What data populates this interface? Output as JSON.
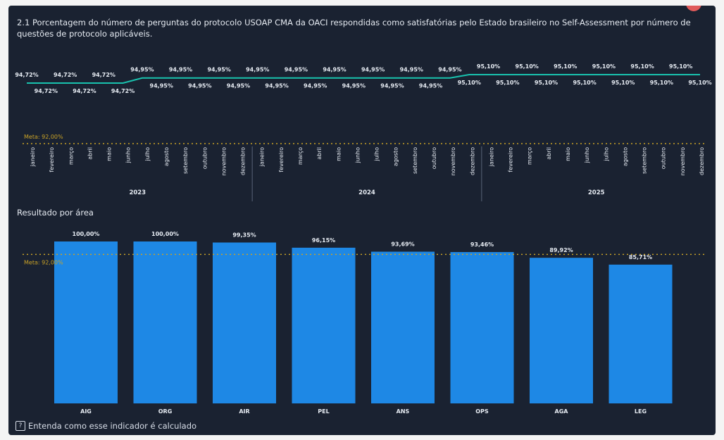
{
  "title": "2.1 Porcentagem do número de perguntas do protocolo USOAP CMA da OACI respondidas como satisfatórias pelo Estado brasileiro no Self-Assessment por número de questões de protocolo aplicáveis.",
  "section_label": "Resultado por área",
  "help_link": "Entenda como esse indicador é calculado",
  "help_icon": "question-box-icon",
  "colors": {
    "background": "#1a2231",
    "line": "#19c2ae",
    "bar": "#1e88e5",
    "meta": "#c9a227",
    "text": "#e6ebf2"
  },
  "chart_data": [
    {
      "type": "line",
      "meta_label": "Meta: 92,00%",
      "meta_value": 92.0,
      "x_months": [
        "janeiro",
        "fevereiro",
        "março",
        "abril",
        "maio",
        "junho",
        "julho",
        "agosto",
        "setembro",
        "outubro",
        "novembro",
        "dezembro"
      ],
      "years": [
        "2023",
        "2024",
        "2025"
      ],
      "values": [
        94.72,
        94.72,
        94.72,
        94.72,
        94.72,
        94.72,
        94.95,
        94.95,
        94.95,
        94.95,
        94.95,
        94.95,
        94.95,
        94.95,
        94.95,
        94.95,
        94.95,
        94.95,
        94.95,
        94.95,
        94.95,
        94.95,
        94.95,
        95.1,
        95.1,
        95.1,
        95.1,
        95.1,
        95.1,
        95.1,
        95.1,
        95.1,
        95.1,
        95.1,
        95.1,
        95.1
      ],
      "labels": [
        "94,72%",
        "94,72%",
        "94,72%",
        "94,72%",
        "94,72%",
        "94,72%",
        "94,95%",
        "94,95%",
        "94,95%",
        "94,95%",
        "94,95%",
        "94,95%",
        "94,95%",
        "94,95%",
        "94,95%",
        "94,95%",
        "94,95%",
        "94,95%",
        "94,95%",
        "94,95%",
        "94,95%",
        "94,95%",
        "94,95%",
        "95,10%",
        "95,10%",
        "95,10%",
        "95,10%",
        "95,10%",
        "95,10%",
        "95,10%",
        "95,10%",
        "95,10%",
        "95,10%",
        "95,10%",
        "95,10%",
        "95,10%"
      ]
    },
    {
      "type": "bar",
      "categories": [
        "AIG",
        "ORG",
        "AIR",
        "PEL",
        "ANS",
        "OPS",
        "AGA",
        "LEG"
      ],
      "values": [
        100.0,
        100.0,
        99.35,
        96.15,
        93.69,
        93.46,
        89.92,
        85.71
      ],
      "labels": [
        "100,00%",
        "100,00%",
        "99,35%",
        "96,15%",
        "93,69%",
        "93,46%",
        "89,92%",
        "85,71%"
      ],
      "meta_label": "Meta: 92,00%",
      "meta_value": 92.0
    }
  ]
}
